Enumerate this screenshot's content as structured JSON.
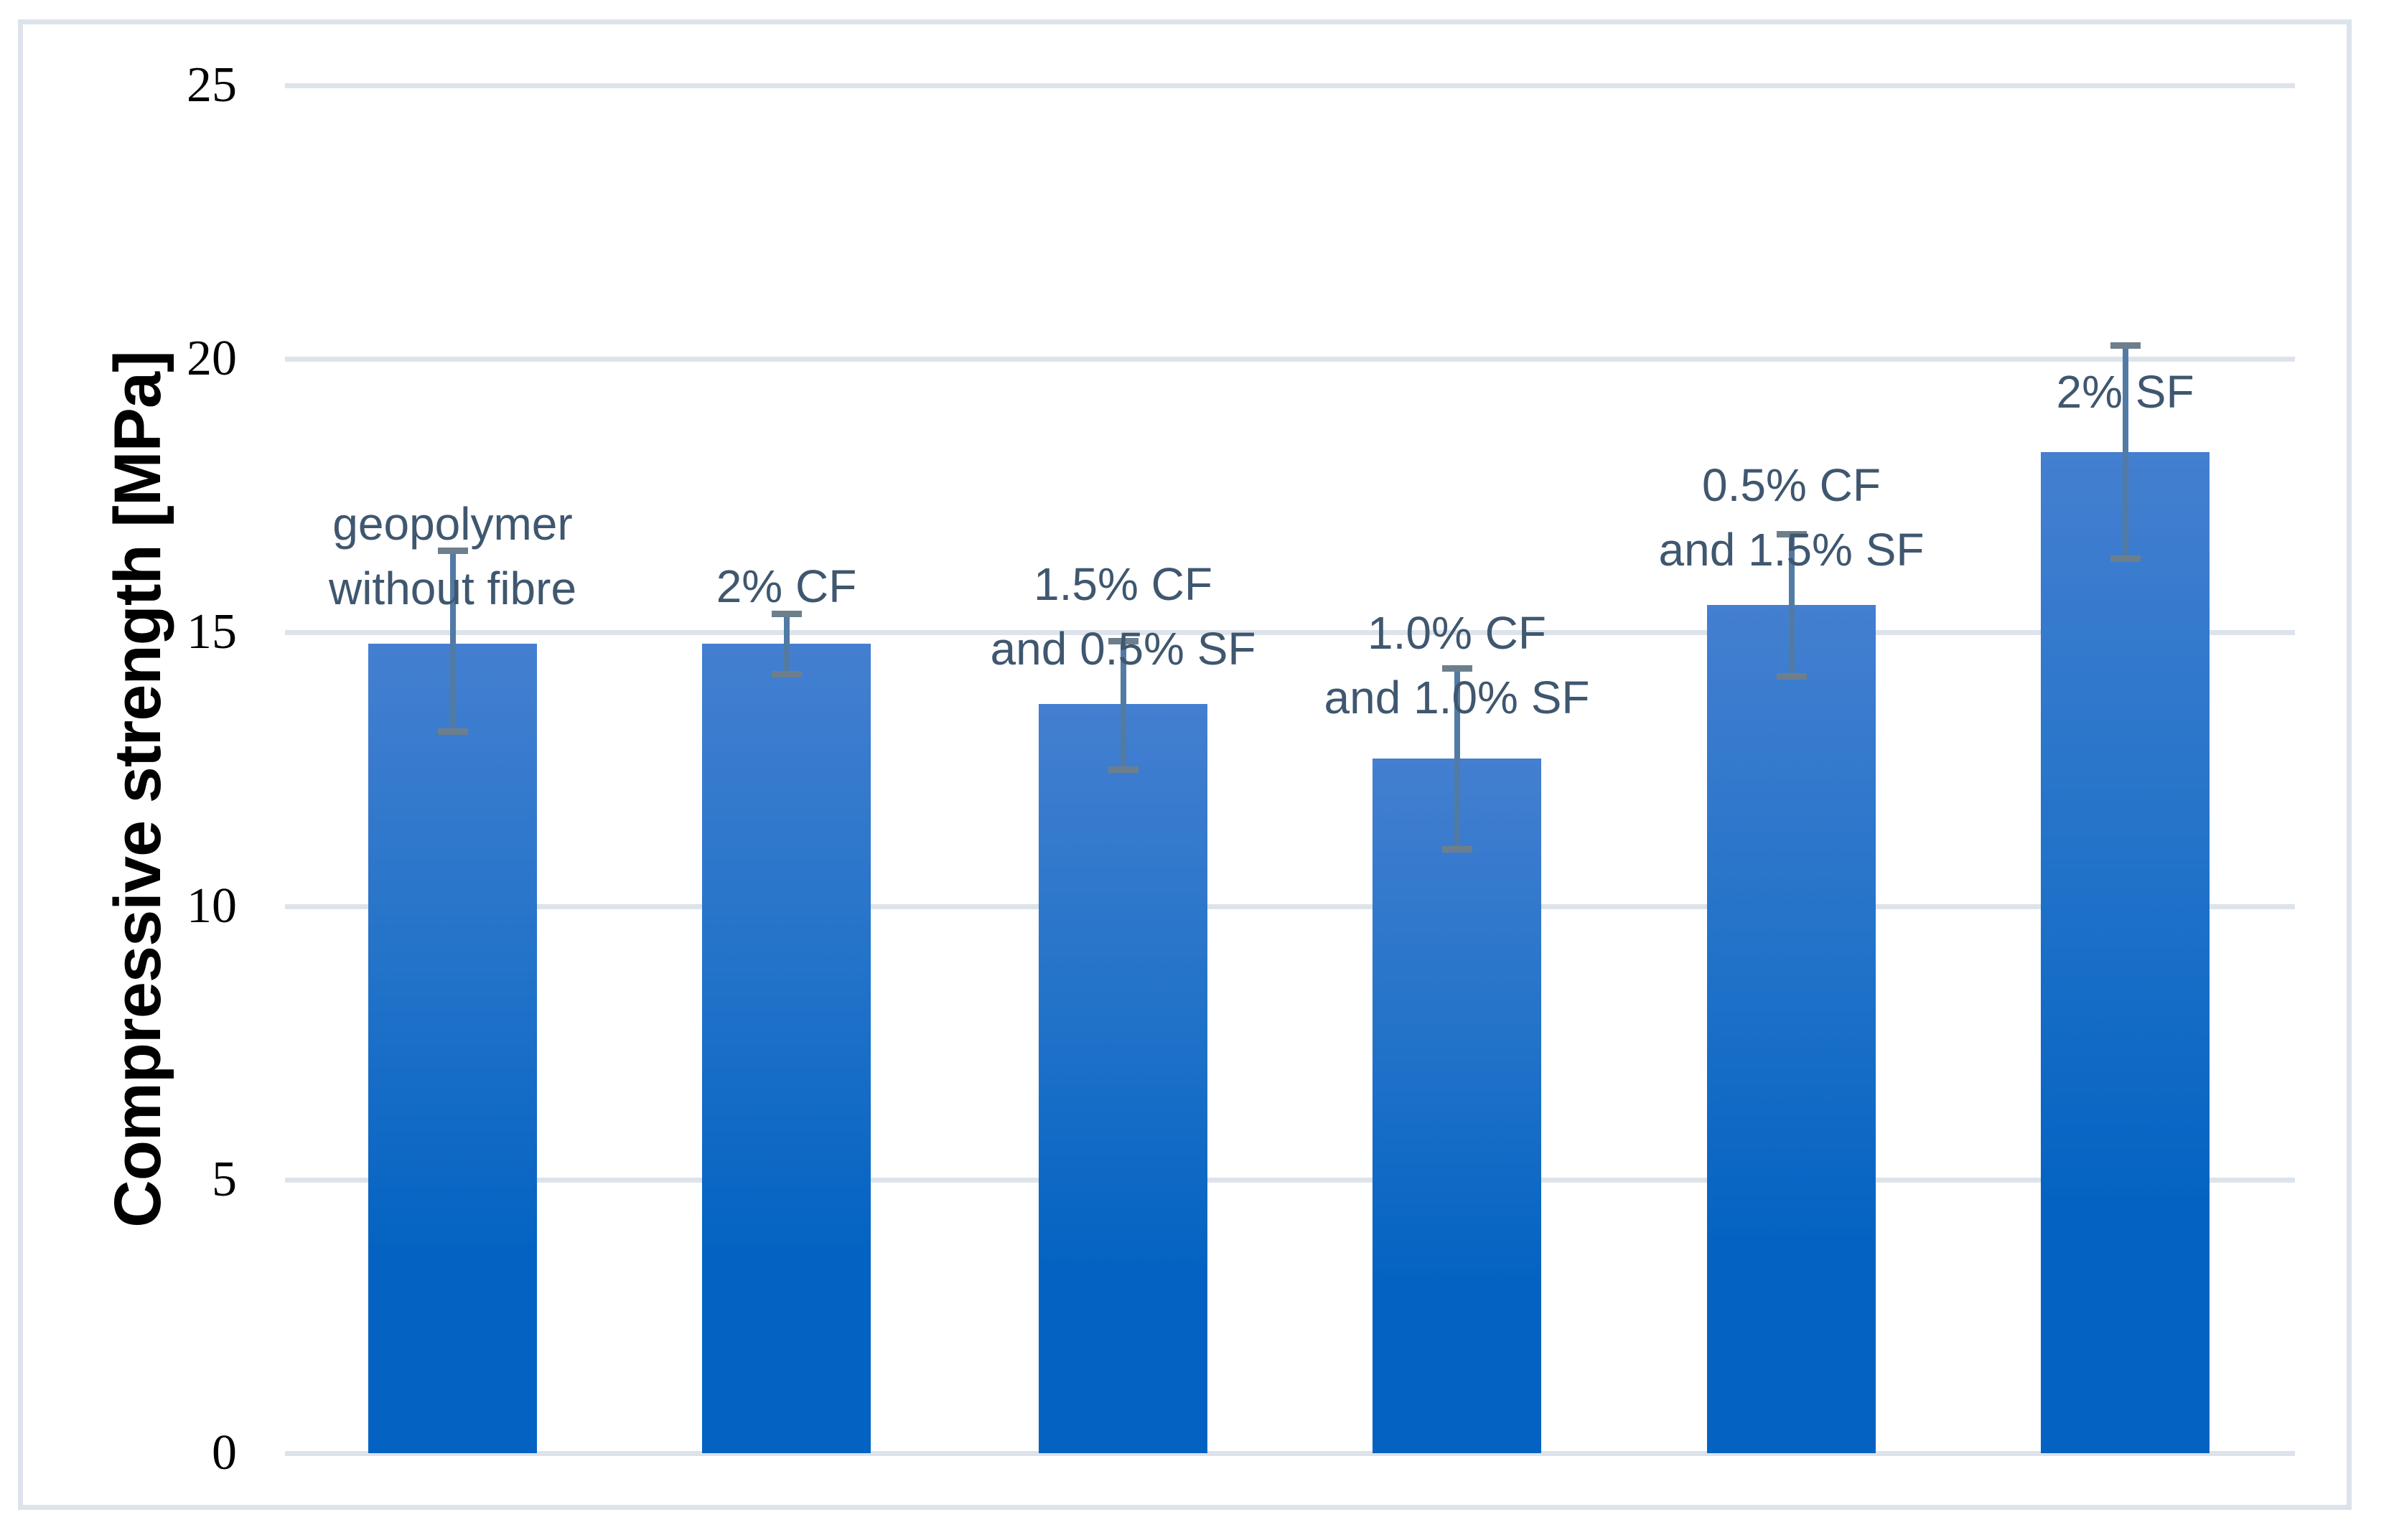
{
  "chart_data": {
    "type": "bar",
    "title": "",
    "xlabel": "",
    "ylabel": "Compressive strength [MPa]",
    "ylim": [
      0,
      25
    ],
    "yticks": [
      0,
      5,
      10,
      15,
      20,
      25
    ],
    "grid": true,
    "legend": false,
    "categories": [
      "geopolymer\nwithout fibre",
      "2% CF",
      "1.5% CF\nand 0.5% SF",
      "1.0% CF\nand 1.0% SF",
      "0.5% CF\nand 1.5% SF",
      "2% SF"
    ],
    "values": [
      14.8,
      14.8,
      13.7,
      12.7,
      15.5,
      18.3
    ],
    "error_plus": [
      1.7,
      0.55,
      1.15,
      1.65,
      1.3,
      1.95
    ],
    "error_minus": [
      1.6,
      0.55,
      1.2,
      1.65,
      1.3,
      1.95
    ],
    "colors": {
      "bar_gradient_top": "#447fd0",
      "bar_gradient_mid": "#2273c9",
      "bar_gradient_bottom": "#0463c2",
      "error_line": "#517ba4",
      "error_cap": "#6d7f8d",
      "gridline": "#dde3eb",
      "chart_border": "#dde3eb",
      "category_label_text": "#3f576f",
      "tick_label_text": "#000000",
      "background": "#ffffff"
    }
  }
}
